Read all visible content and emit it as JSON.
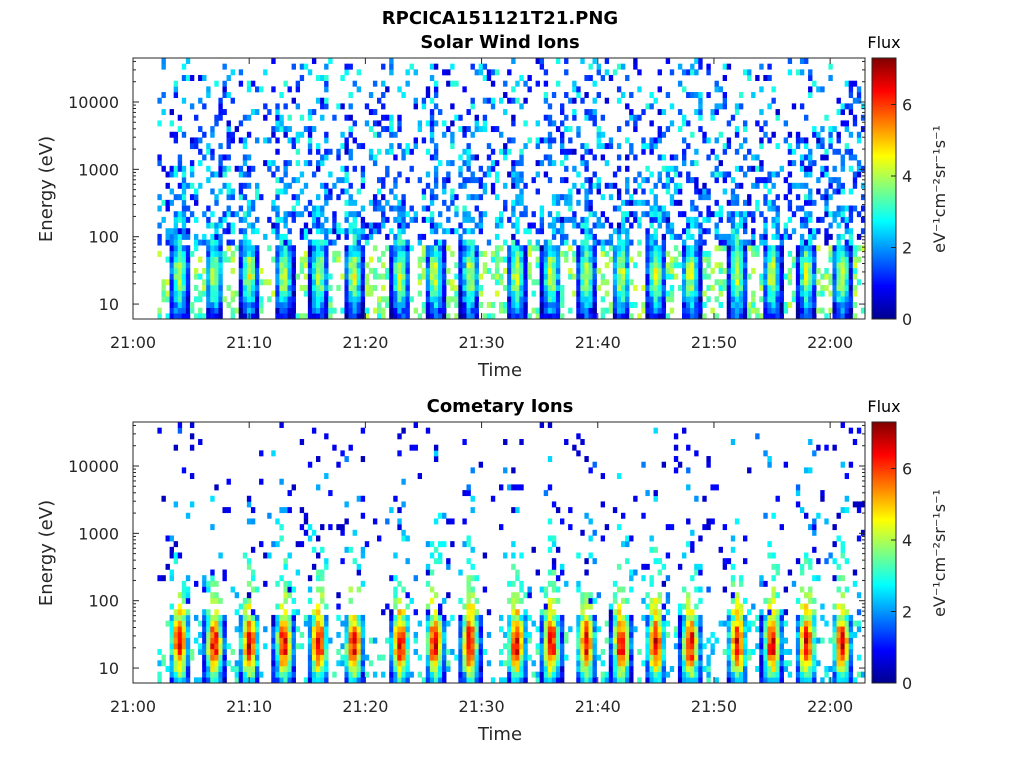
{
  "figure": {
    "title": "RPCICA151121T21.PNG"
  },
  "chart_data": [
    {
      "type": "heatmap",
      "title": "Solar Wind Ions",
      "xlabel": "Time",
      "ylabel": "Energy (eV)",
      "x_range": [
        "21:00",
        "22:03"
      ],
      "x_ticks": [
        "21:00",
        "21:10",
        "21:20",
        "21:30",
        "21:40",
        "21:50",
        "22:00"
      ],
      "y_scale": "log",
      "y_range": [
        6,
        45000
      ],
      "y_ticks": [
        "10",
        "100",
        "1000",
        "10000"
      ],
      "colorbar": {
        "title": "Flux",
        "label": "eV⁻¹cm⁻²sr⁻¹s⁻¹",
        "range": [
          0,
          7.3
        ],
        "ticks": [
          "0",
          "2",
          "4",
          "6"
        ],
        "colormap": "jet"
      },
      "data_start": "21:02",
      "peak_times": [
        "21:04",
        "21:07",
        "21:10",
        "21:13",
        "21:16",
        "21:19",
        "21:23",
        "21:26",
        "21:29",
        "21:33",
        "21:36",
        "21:39",
        "21:42",
        "21:45",
        "21:48",
        "21:52",
        "21:55",
        "21:58",
        "22:01"
      ],
      "core_energy_eV": [
        15,
        50
      ],
      "core_flux": 4.3,
      "background_flux": 2.5
    },
    {
      "type": "heatmap",
      "title": "Cometary Ions",
      "xlabel": "Time",
      "ylabel": "Energy (eV)",
      "x_range": [
        "21:00",
        "22:03"
      ],
      "x_ticks": [
        "21:00",
        "21:10",
        "21:20",
        "21:30",
        "21:40",
        "21:50",
        "22:00"
      ],
      "y_scale": "log",
      "y_range": [
        6,
        45000
      ],
      "y_ticks": [
        "10",
        "100",
        "1000",
        "10000"
      ],
      "colorbar": {
        "title": "Flux",
        "label": "eV⁻¹cm⁻²sr⁻¹s⁻¹",
        "range": [
          0,
          7.3
        ],
        "ticks": [
          "0",
          "2",
          "4",
          "6"
        ],
        "colormap": "jet"
      },
      "data_start": "21:02",
      "peak_times": [
        "21:04",
        "21:07",
        "21:10",
        "21:13",
        "21:16",
        "21:19",
        "21:23",
        "21:26",
        "21:29",
        "21:33",
        "21:36",
        "21:39",
        "21:42",
        "21:45",
        "21:48",
        "21:52",
        "21:55",
        "21:58",
        "22:01"
      ],
      "core_energy_eV": [
        12,
        45
      ],
      "core_flux": 6.6,
      "background_flux": 0.5
    }
  ]
}
